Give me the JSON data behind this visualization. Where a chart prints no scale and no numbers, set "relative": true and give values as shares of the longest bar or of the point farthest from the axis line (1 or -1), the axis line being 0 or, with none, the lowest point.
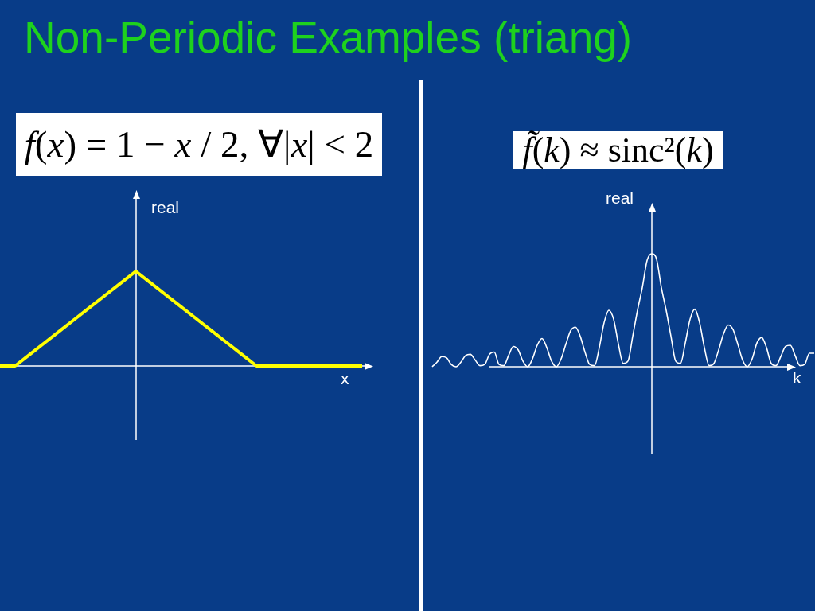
{
  "chart_data": [
    {
      "type": "line",
      "title": "Non-Periodic Examples (triang)",
      "subtitle": "f(x) = 1 − x / 2, ∀|x| < 2",
      "xlabel": "x",
      "ylabel": "real",
      "relative": true,
      "marker": "none",
      "line_style": "solid",
      "categories": [
        null,
        null,
        null,
        null,
        null,
        null,
        null,
        null,
        null,
        null,
        null,
        null,
        null,
        null,
        null,
        null,
        null,
        null,
        null,
        null,
        null,
        null,
        null,
        null,
        null
      ],
      "series": [
        {
          "color": "#ffff00",
          "values": [
            0,
            0,
            0.125,
            0.25,
            0.375,
            0.5,
            0.625,
            0.75,
            0.875,
            1,
            0.875,
            0.75,
            0.625,
            0.5,
            0.375,
            0.25,
            0.125,
            0,
            0,
            0,
            0,
            0,
            0,
            0,
            0
          ]
        }
      ]
    },
    {
      "type": "line",
      "subtitle": "f̃(k) ≈ sinc²(k)",
      "xlabel": "k",
      "ylabel": "real",
      "relative": true,
      "marker": "none",
      "line_style": "solid",
      "categories": [
        null,
        null,
        null,
        null,
        null,
        null,
        null,
        null,
        null,
        null,
        null,
        null,
        null,
        null,
        null,
        null,
        null,
        null,
        null,
        null,
        null,
        null,
        null,
        null,
        null,
        null,
        null,
        null,
        null,
        null,
        null,
        null,
        null,
        null,
        null,
        null,
        null,
        null,
        null,
        null,
        null,
        null,
        null,
        null,
        null,
        null,
        null,
        null,
        null,
        null,
        null,
        null,
        null,
        null,
        null,
        null,
        null,
        null,
        null,
        null,
        null,
        null,
        null,
        null,
        null,
        null,
        null,
        null,
        null,
        null,
        null,
        null,
        null,
        null,
        null,
        null,
        null,
        null,
        null,
        null,
        null
      ],
      "series": [
        {
          "color": "#ffffff",
          "values": [
            0,
            0.04,
            0.09,
            0.08,
            0.02,
            0,
            0.04,
            0.1,
            0.11,
            0.06,
            0.01,
            0.02,
            0.11,
            0.13,
            0.02,
            0.01,
            0.1,
            0.18,
            0.15,
            0.05,
            0,
            0.07,
            0.19,
            0.25,
            0.17,
            0.05,
            0,
            0.07,
            0.2,
            0.32,
            0.35,
            0.27,
            0.13,
            0.02,
            0.01,
            0.17,
            0.39,
            0.5,
            0.42,
            0.2,
            0.03,
            0.05,
            0.27,
            0.5,
            0.7,
            0.94,
            1,
            0.95,
            0.7,
            0.5,
            0.27,
            0.05,
            0.03,
            0.21,
            0.42,
            0.51,
            0.39,
            0.17,
            0.01,
            0.03,
            0.15,
            0.29,
            0.37,
            0.33,
            0.2,
            0.06,
            0,
            0.07,
            0.21,
            0.26,
            0.17,
            0.03,
            0.01,
            0.09,
            0.18,
            0.19,
            0.1,
            0.01,
            0.02,
            0.12,
            0.12
          ]
        }
      ]
    }
  ]
}
